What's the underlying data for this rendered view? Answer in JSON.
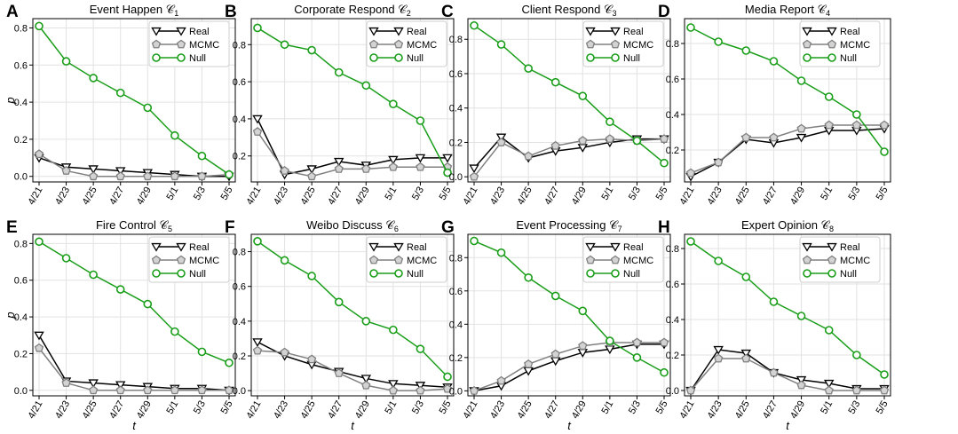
{
  "figure": {
    "ylabel": "p",
    "xlabel": "t"
  },
  "chart_data": [
    {
      "letter": "A",
      "title": "Event Happen",
      "symbol": "𝒞",
      "sub": "1",
      "type": "line",
      "x": [
        "4/21",
        "4/23",
        "4/25",
        "4/27",
        "4/29",
        "5/1",
        "5/3",
        "5/5"
      ],
      "ylim": [
        -0.03,
        0.85
      ],
      "yticks": [
        "0.0",
        "0.2",
        "0.4",
        "0.6",
        "0.8"
      ],
      "ytick_values": [
        0,
        0.2,
        0.4,
        0.6,
        0.8
      ],
      "series": [
        {
          "name": "Real",
          "color": "#000000",
          "marker": "triangle-down",
          "values": [
            0.1,
            0.05,
            0.04,
            0.03,
            0.02,
            0.01,
            0.0,
            0.0
          ]
        },
        {
          "name": "MCMC",
          "color": "#808080",
          "marker": "pentagon",
          "values": [
            0.12,
            0.03,
            0.0,
            0.0,
            0.0,
            0.0,
            0.0,
            0.01
          ]
        },
        {
          "name": "Null",
          "color": "#1a9e1a",
          "marker": "circle",
          "values": [
            0.81,
            0.62,
            0.53,
            0.45,
            0.37,
            0.22,
            0.11,
            0.01
          ]
        }
      ]
    },
    {
      "letter": "B",
      "title": "Corporate Respond",
      "symbol": "𝒞",
      "sub": "2",
      "type": "line",
      "x": [
        "4/21",
        "4/23",
        "4/25",
        "4/27",
        "4/29",
        "5/1",
        "5/3",
        "5/5"
      ],
      "ylim": [
        0.06,
        0.94
      ],
      "yticks": [
        "0.2",
        "0.4",
        "0.6",
        "0.8"
      ],
      "ytick_values": [
        0.2,
        0.4,
        0.6,
        0.8
      ],
      "series": [
        {
          "name": "Real",
          "color": "#000000",
          "marker": "triangle-down",
          "values": [
            0.4,
            0.1,
            0.13,
            0.17,
            0.15,
            0.18,
            0.19,
            0.19
          ]
        },
        {
          "name": "MCMC",
          "color": "#808080",
          "marker": "pentagon",
          "values": [
            0.33,
            0.12,
            0.09,
            0.13,
            0.13,
            0.14,
            0.14,
            0.14
          ]
        },
        {
          "name": "Null",
          "color": "#1a9e1a",
          "marker": "circle",
          "values": [
            0.89,
            0.8,
            0.77,
            0.65,
            0.58,
            0.48,
            0.39,
            0.11
          ]
        }
      ]
    },
    {
      "letter": "C",
      "title": "Client Respond",
      "symbol": "𝒞",
      "sub": "3",
      "type": "line",
      "x": [
        "4/21",
        "4/23",
        "4/25",
        "4/27",
        "4/29",
        "5/1",
        "5/3",
        "5/5"
      ],
      "ylim": [
        -0.03,
        0.92
      ],
      "yticks": [
        "0.0",
        "0.2",
        "0.4",
        "0.6",
        "0.8"
      ],
      "ytick_values": [
        0,
        0.2,
        0.4,
        0.6,
        0.8
      ],
      "series": [
        {
          "name": "Real",
          "color": "#000000",
          "marker": "triangle-down",
          "values": [
            0.05,
            0.23,
            0.11,
            0.15,
            0.17,
            0.2,
            0.22,
            0.22
          ]
        },
        {
          "name": "MCMC",
          "color": "#808080",
          "marker": "pentagon",
          "values": [
            0.0,
            0.2,
            0.12,
            0.18,
            0.21,
            0.22,
            0.21,
            0.22
          ]
        },
        {
          "name": "Null",
          "color": "#1a9e1a",
          "marker": "circle",
          "values": [
            0.88,
            0.77,
            0.63,
            0.55,
            0.47,
            0.32,
            0.21,
            0.08
          ]
        }
      ]
    },
    {
      "letter": "D",
      "title": "Media Report",
      "symbol": "𝒞",
      "sub": "4",
      "type": "line",
      "x": [
        "4/21",
        "4/23",
        "4/25",
        "4/27",
        "4/29",
        "5/1",
        "5/3",
        "5/5"
      ],
      "ylim": [
        0.02,
        0.94
      ],
      "yticks": [
        "0.2",
        "0.4",
        "0.6",
        "0.8"
      ],
      "ytick_values": [
        0.2,
        0.4,
        0.6,
        0.8
      ],
      "series": [
        {
          "name": "Real",
          "color": "#000000",
          "marker": "triangle-down",
          "values": [
            0.05,
            0.13,
            0.26,
            0.24,
            0.27,
            0.31,
            0.31,
            0.32
          ]
        },
        {
          "name": "MCMC",
          "color": "#808080",
          "marker": "pentagon",
          "values": [
            0.07,
            0.13,
            0.27,
            0.27,
            0.32,
            0.34,
            0.34,
            0.34
          ]
        },
        {
          "name": "Null",
          "color": "#1a9e1a",
          "marker": "circle",
          "values": [
            0.89,
            0.81,
            0.76,
            0.7,
            0.59,
            0.5,
            0.4,
            0.19
          ]
        }
      ]
    },
    {
      "letter": "E",
      "title": "Fire Control",
      "symbol": "𝒞",
      "sub": "5",
      "type": "line",
      "x": [
        "4/21",
        "4/23",
        "4/25",
        "4/27",
        "4/29",
        "5/1",
        "5/3",
        "5/5"
      ],
      "ylim": [
        -0.03,
        0.85
      ],
      "yticks": [
        "0.0",
        "0.2",
        "0.4",
        "0.6",
        "0.8"
      ],
      "ytick_values": [
        0,
        0.2,
        0.4,
        0.6,
        0.8
      ],
      "series": [
        {
          "name": "Real",
          "color": "#000000",
          "marker": "triangle-down",
          "values": [
            0.3,
            0.05,
            0.04,
            0.03,
            0.02,
            0.01,
            0.01,
            0.0
          ]
        },
        {
          "name": "MCMC",
          "color": "#808080",
          "marker": "pentagon",
          "values": [
            0.23,
            0.04,
            0.0,
            0.0,
            0.0,
            0.0,
            0.0,
            0.0
          ]
        },
        {
          "name": "Null",
          "color": "#1a9e1a",
          "marker": "circle",
          "values": [
            0.81,
            0.72,
            0.63,
            0.55,
            0.47,
            0.32,
            0.21,
            0.15
          ]
        }
      ]
    },
    {
      "letter": "F",
      "title": "Weibo Discuss",
      "symbol": "𝒞",
      "sub": "6",
      "type": "line",
      "x": [
        "4/21",
        "4/23",
        "4/25",
        "4/27",
        "4/29",
        "5/1",
        "5/3",
        "5/5"
      ],
      "ylim": [
        -0.03,
        0.9
      ],
      "yticks": [
        "0.0",
        "0.2",
        "0.4",
        "0.6",
        "0.8"
      ],
      "ytick_values": [
        0,
        0.2,
        0.4,
        0.6,
        0.8
      ],
      "series": [
        {
          "name": "Real",
          "color": "#000000",
          "marker": "triangle-down",
          "values": [
            0.28,
            0.2,
            0.15,
            0.11,
            0.07,
            0.04,
            0.03,
            0.02
          ]
        },
        {
          "name": "MCMC",
          "color": "#808080",
          "marker": "pentagon",
          "values": [
            0.23,
            0.22,
            0.18,
            0.1,
            0.03,
            0.0,
            0.0,
            0.01
          ]
        },
        {
          "name": "Null",
          "color": "#1a9e1a",
          "marker": "circle",
          "values": [
            0.86,
            0.75,
            0.66,
            0.51,
            0.4,
            0.35,
            0.24,
            0.08
          ]
        }
      ]
    },
    {
      "letter": "G",
      "title": "Event Processing",
      "symbol": "𝒞",
      "sub": "7",
      "type": "line",
      "x": [
        "4/21",
        "4/23",
        "4/25",
        "4/27",
        "4/29",
        "5/1",
        "5/3",
        "5/5"
      ],
      "ylim": [
        -0.03,
        0.94
      ],
      "yticks": [
        "0.0",
        "0.2",
        "0.4",
        "0.6",
        "0.8"
      ],
      "ytick_values": [
        0,
        0.2,
        0.4,
        0.6,
        0.8
      ],
      "series": [
        {
          "name": "Real",
          "color": "#000000",
          "marker": "triangle-down",
          "values": [
            0.0,
            0.03,
            0.12,
            0.18,
            0.23,
            0.25,
            0.28,
            0.28
          ]
        },
        {
          "name": "MCMC",
          "color": "#808080",
          "marker": "pentagon",
          "values": [
            0.0,
            0.06,
            0.16,
            0.22,
            0.27,
            0.29,
            0.29,
            0.29
          ]
        },
        {
          "name": "Null",
          "color": "#1a9e1a",
          "marker": "circle",
          "values": [
            0.9,
            0.83,
            0.68,
            0.57,
            0.48,
            0.3,
            0.2,
            0.11
          ]
        }
      ]
    },
    {
      "letter": "H",
      "title": "Expert Opinion",
      "symbol": "𝒞",
      "sub": "8",
      "type": "line",
      "x": [
        "4/21",
        "4/23",
        "4/25",
        "4/27",
        "4/29",
        "5/1",
        "5/3",
        "5/5"
      ],
      "ylim": [
        -0.03,
        0.88
      ],
      "yticks": [
        "0.0",
        "0.2",
        "0.4",
        "0.6",
        "0.8"
      ],
      "ytick_values": [
        0,
        0.2,
        0.4,
        0.6,
        0.8
      ],
      "series": [
        {
          "name": "Real",
          "color": "#000000",
          "marker": "triangle-down",
          "values": [
            0.0,
            0.23,
            0.21,
            0.1,
            0.06,
            0.04,
            0.01,
            0.01
          ]
        },
        {
          "name": "MCMC",
          "color": "#808080",
          "marker": "pentagon",
          "values": [
            0.0,
            0.18,
            0.18,
            0.1,
            0.03,
            0.0,
            0.0,
            0.0
          ]
        },
        {
          "name": "Null",
          "color": "#1a9e1a",
          "marker": "circle",
          "values": [
            0.84,
            0.73,
            0.64,
            0.5,
            0.42,
            0.34,
            0.2,
            0.09
          ]
        }
      ]
    }
  ]
}
